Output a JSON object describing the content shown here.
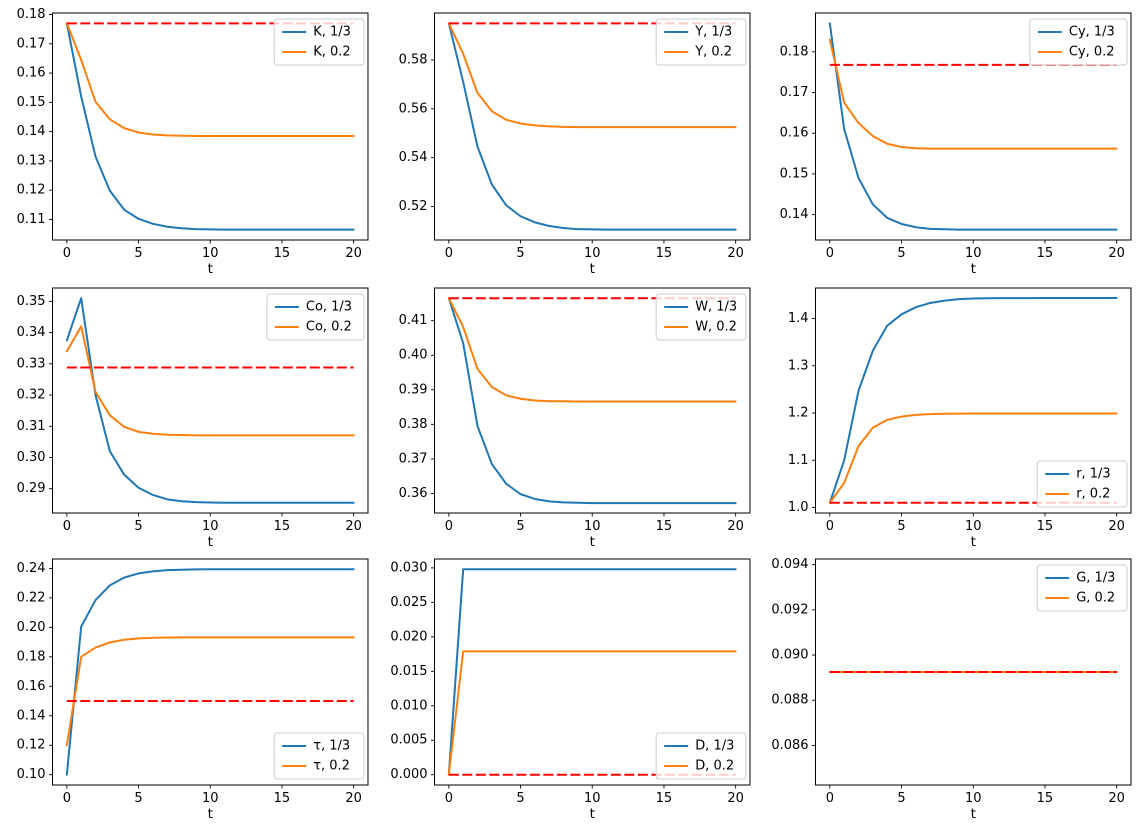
{
  "figure": {
    "background": "#ffffff",
    "xlabel": "t",
    "colors": {
      "blue": "#1f77b4",
      "orange": "#ff7f0e",
      "baseline_red": "#ff0000",
      "legend_border": "#cccccc",
      "spine": "#000000"
    }
  },
  "chart_data": [
    {
      "type": "line",
      "name": "K",
      "xlabel": "t",
      "x": [
        0,
        1,
        2,
        3,
        4,
        5,
        6,
        7,
        8,
        9,
        10,
        11,
        12,
        13,
        14,
        15,
        16,
        17,
        18,
        19,
        20
      ],
      "xlim": [
        -1,
        21
      ],
      "xticks": [
        0,
        5,
        10,
        15,
        20
      ],
      "ylim": [
        0.102975,
        0.180525
      ],
      "yticks": [
        0.11,
        0.12,
        0.13,
        0.14,
        0.15,
        0.16,
        0.17,
        0.18
      ],
      "ytick_decimals": 2,
      "baseline": {
        "value": 0.177,
        "color": "#ff0000",
        "style": "dashed"
      },
      "legend_pos": "top-right",
      "series": [
        {
          "label": "K, 1/3",
          "color": "#1f77b4",
          "values": [
            0.177,
            0.152,
            0.1315,
            0.1198,
            0.1133,
            0.1102,
            0.1085,
            0.1075,
            0.107,
            0.1067,
            0.1066,
            0.1065,
            0.1065,
            0.1065,
            0.1065,
            0.1065,
            0.1065,
            0.1065,
            0.1065,
            0.1065,
            0.1065
          ]
        },
        {
          "label": "K, 0.2",
          "color": "#ff7f0e",
          "values": [
            0.177,
            0.1645,
            0.1502,
            0.1442,
            0.1412,
            0.1397,
            0.139,
            0.1387,
            0.1386,
            0.1385,
            0.1385,
            0.1385,
            0.1385,
            0.1385,
            0.1385,
            0.1385,
            0.1385,
            0.1385,
            0.1385,
            0.1385,
            0.1385
          ]
        }
      ]
    },
    {
      "type": "line",
      "name": "Y",
      "xlabel": "t",
      "x": [
        0,
        1,
        2,
        3,
        4,
        5,
        6,
        7,
        8,
        9,
        10,
        11,
        12,
        13,
        14,
        15,
        16,
        17,
        18,
        19,
        20
      ],
      "xlim": [
        -1,
        21
      ],
      "xticks": [
        0,
        5,
        10,
        15,
        20
      ],
      "ylim": [
        0.506275,
        0.599225
      ],
      "yticks": [
        0.52,
        0.54,
        0.56,
        0.58
      ],
      "ytick_decimals": 2,
      "baseline": {
        "value": 0.595,
        "color": "#ff0000",
        "style": "dashed"
      },
      "legend_pos": "top-right",
      "series": [
        {
          "label": "Y, 1/3",
          "color": "#1f77b4",
          "values": [
            0.595,
            0.571,
            0.5445,
            0.529,
            0.5205,
            0.516,
            0.5135,
            0.512,
            0.5112,
            0.5107,
            0.5106,
            0.5105,
            0.5105,
            0.5105,
            0.5105,
            0.5105,
            0.5105,
            0.5105,
            0.5105,
            0.5105,
            0.5105
          ]
        },
        {
          "label": "Y, 0.2",
          "color": "#ff7f0e",
          "values": [
            0.595,
            0.5825,
            0.5665,
            0.559,
            0.5555,
            0.554,
            0.5532,
            0.5528,
            0.5526,
            0.5525,
            0.5525,
            0.5525,
            0.5525,
            0.5525,
            0.5525,
            0.5525,
            0.5525,
            0.5525,
            0.5525,
            0.5525,
            0.5525
          ]
        }
      ]
    },
    {
      "type": "line",
      "name": "Cy",
      "xlabel": "t",
      "x": [
        0,
        1,
        2,
        3,
        4,
        5,
        6,
        7,
        8,
        9,
        10,
        11,
        12,
        13,
        14,
        15,
        16,
        17,
        18,
        19,
        20
      ],
      "xlim": [
        -1,
        21
      ],
      "xticks": [
        0,
        5,
        10,
        15,
        20
      ],
      "ylim": [
        0.133765,
        0.189535
      ],
      "yticks": [
        0.14,
        0.15,
        0.16,
        0.17,
        0.18
      ],
      "ytick_decimals": 2,
      "baseline": {
        "value": 0.1768,
        "color": "#ff0000",
        "style": "dashed"
      },
      "legend_pos": "top-right",
      "series": [
        {
          "label": "Cy, 1/3",
          "color": "#1f77b4",
          "values": [
            0.187,
            0.161,
            0.149,
            0.1425,
            0.1392,
            0.1377,
            0.1369,
            0.1365,
            0.1364,
            0.1363,
            0.1363,
            0.1363,
            0.1363,
            0.1363,
            0.1363,
            0.1363,
            0.1363,
            0.1363,
            0.1363,
            0.1363,
            0.1363
          ]
        },
        {
          "label": "Cy, 0.2",
          "color": "#ff7f0e",
          "values": [
            0.183,
            0.1675,
            0.1625,
            0.1593,
            0.1574,
            0.1566,
            0.1563,
            0.1562,
            0.1562,
            0.1562,
            0.1562,
            0.1562,
            0.1562,
            0.1562,
            0.1562,
            0.1562,
            0.1562,
            0.1562,
            0.1562,
            0.1562,
            0.1562
          ]
        }
      ]
    },
    {
      "type": "line",
      "name": "Co",
      "xlabel": "t",
      "x": [
        0,
        1,
        2,
        3,
        4,
        5,
        6,
        7,
        8,
        9,
        10,
        11,
        12,
        13,
        14,
        15,
        16,
        17,
        18,
        19,
        20
      ],
      "xlim": [
        -1,
        21
      ],
      "xticks": [
        0,
        5,
        10,
        15,
        20
      ],
      "ylim": [
        0.282225,
        0.354275
      ],
      "yticks": [
        0.29,
        0.3,
        0.31,
        0.32,
        0.33,
        0.34,
        0.35
      ],
      "ytick_decimals": 2,
      "baseline": {
        "value": 0.3288,
        "color": "#ff0000",
        "style": "dashed"
      },
      "legend_pos": "top-right",
      "series": [
        {
          "label": "Co, 1/3",
          "color": "#1f77b4",
          "values": [
            0.3375,
            0.351,
            0.32,
            0.302,
            0.2945,
            0.2903,
            0.288,
            0.2866,
            0.286,
            0.2857,
            0.2856,
            0.2855,
            0.2855,
            0.2855,
            0.2855,
            0.2855,
            0.2855,
            0.2855,
            0.2855,
            0.2855,
            0.2855
          ]
        },
        {
          "label": "Co, 0.2",
          "color": "#ff7f0e",
          "values": [
            0.334,
            0.342,
            0.321,
            0.3135,
            0.3098,
            0.3082,
            0.3076,
            0.3073,
            0.3072,
            0.3071,
            0.3071,
            0.3071,
            0.3071,
            0.3071,
            0.3071,
            0.3071,
            0.3071,
            0.3071,
            0.3071,
            0.3071,
            0.3071
          ]
        }
      ]
    },
    {
      "type": "line",
      "name": "W",
      "xlabel": "t",
      "x": [
        0,
        1,
        2,
        3,
        4,
        5,
        6,
        7,
        8,
        9,
        10,
        11,
        12,
        13,
        14,
        15,
        16,
        17,
        18,
        19,
        20
      ],
      "xlim": [
        -1,
        21
      ],
      "xticks": [
        0,
        5,
        10,
        15,
        20
      ],
      "ylim": [
        0.35434,
        0.41946
      ],
      "yticks": [
        0.36,
        0.37,
        0.38,
        0.39,
        0.4,
        0.41
      ],
      "ytick_decimals": 2,
      "baseline": {
        "value": 0.4165,
        "color": "#ff0000",
        "style": "dashed"
      },
      "legend_pos": "top-right",
      "series": [
        {
          "label": "W, 1/3",
          "color": "#1f77b4",
          "values": [
            0.4165,
            0.4035,
            0.3795,
            0.3685,
            0.3628,
            0.3598,
            0.3584,
            0.3577,
            0.3574,
            0.3573,
            0.3572,
            0.3572,
            0.3572,
            0.3572,
            0.3572,
            0.3572,
            0.3572,
            0.3572,
            0.3572,
            0.3572,
            0.3572
          ]
        },
        {
          "label": "W, 0.2",
          "color": "#ff7f0e",
          "values": [
            0.4165,
            0.4082,
            0.396,
            0.3908,
            0.3884,
            0.3874,
            0.3869,
            0.3867,
            0.3867,
            0.3866,
            0.3866,
            0.3866,
            0.3866,
            0.3866,
            0.3866,
            0.3866,
            0.3866,
            0.3866,
            0.3866,
            0.3866,
            0.3866
          ]
        }
      ]
    },
    {
      "type": "line",
      "name": "r",
      "xlabel": "t",
      "x": [
        0,
        1,
        2,
        3,
        4,
        5,
        6,
        7,
        8,
        9,
        10,
        11,
        12,
        13,
        14,
        15,
        16,
        17,
        18,
        19,
        20
      ],
      "xlim": [
        -1,
        21
      ],
      "xticks": [
        0,
        5,
        10,
        15,
        20
      ],
      "ylim": [
        0.98835,
        1.46465
      ],
      "yticks": [
        1.0,
        1.1,
        1.2,
        1.3,
        1.4
      ],
      "ytick_decimals": 1,
      "baseline": {
        "value": 1.01,
        "color": "#ff0000",
        "style": "dashed"
      },
      "legend_pos": "bottom-right",
      "series": [
        {
          "label": "r, 1/3",
          "color": "#1f77b4",
          "values": [
            1.01,
            1.1,
            1.247,
            1.332,
            1.385,
            1.409,
            1.424,
            1.433,
            1.438,
            1.441,
            1.4425,
            1.443,
            1.4432,
            1.4433,
            1.4433,
            1.4434,
            1.4434,
            1.4434,
            1.4434,
            1.4434,
            1.4434
          ]
        },
        {
          "label": "r, 0.2",
          "color": "#ff7f0e",
          "values": [
            1.01,
            1.052,
            1.13,
            1.169,
            1.1855,
            1.1925,
            1.196,
            1.1977,
            1.1985,
            1.1988,
            1.199,
            1.199,
            1.199,
            1.199,
            1.199,
            1.199,
            1.199,
            1.199,
            1.199,
            1.199,
            1.199
          ]
        }
      ]
    },
    {
      "type": "line",
      "name": "τ",
      "xlabel": "t",
      "x": [
        0,
        1,
        2,
        3,
        4,
        5,
        6,
        7,
        8,
        9,
        10,
        11,
        12,
        13,
        14,
        15,
        16,
        17,
        18,
        19,
        20
      ],
      "xlim": [
        -1,
        21
      ],
      "xticks": [
        0,
        5,
        10,
        15,
        20
      ],
      "ylim": [
        0.09303,
        0.24637
      ],
      "yticks": [
        0.1,
        0.12,
        0.14,
        0.16,
        0.18,
        0.2,
        0.22,
        0.24
      ],
      "ytick_decimals": 2,
      "baseline": {
        "value": 0.15,
        "color": "#ff0000",
        "style": "dashed"
      },
      "legend_pos": "bottom-right",
      "series": [
        {
          "label": "τ, 1/3",
          "color": "#1f77b4",
          "values": [
            0.1,
            0.2005,
            0.2185,
            0.2285,
            0.2338,
            0.2366,
            0.238,
            0.2388,
            0.2391,
            0.2393,
            0.2394,
            0.2394,
            0.2394,
            0.2394,
            0.2394,
            0.2394,
            0.2394,
            0.2394,
            0.2394,
            0.2394,
            0.2394
          ]
        },
        {
          "label": "τ, 0.2",
          "color": "#ff7f0e",
          "values": [
            0.12,
            0.18,
            0.1863,
            0.1898,
            0.1916,
            0.1925,
            0.1929,
            0.1931,
            0.1932,
            0.1932,
            0.1932,
            0.1932,
            0.1932,
            0.1932,
            0.1932,
            0.1932,
            0.1932,
            0.1932,
            0.1932,
            0.1932,
            0.1932
          ]
        }
      ]
    },
    {
      "type": "line",
      "name": "D",
      "xlabel": "t",
      "x": [
        0,
        1,
        2,
        3,
        4,
        5,
        6,
        7,
        8,
        9,
        10,
        11,
        12,
        13,
        14,
        15,
        16,
        17,
        18,
        19,
        20
      ],
      "xlim": [
        -1,
        21
      ],
      "xticks": [
        0,
        5,
        10,
        15,
        20
      ],
      "ylim": [
        -0.00149,
        0.03129
      ],
      "yticks": [
        0.0,
        0.005,
        0.01,
        0.015,
        0.02,
        0.025,
        0.03
      ],
      "ytick_decimals": 3,
      "baseline": {
        "value": 0.0,
        "color": "#ff0000",
        "style": "dashed"
      },
      "legend_pos": "bottom-right",
      "series": [
        {
          "label": "D, 1/3",
          "color": "#1f77b4",
          "values": [
            0,
            0.0298,
            0.0298,
            0.0298,
            0.0298,
            0.0298,
            0.0298,
            0.0298,
            0.0298,
            0.0298,
            0.0298,
            0.0298,
            0.0298,
            0.0298,
            0.0298,
            0.0298,
            0.0298,
            0.0298,
            0.0298,
            0.0298,
            0.0298
          ]
        },
        {
          "label": "D, 0.2",
          "color": "#ff7f0e",
          "values": [
            0,
            0.0179,
            0.0179,
            0.0179,
            0.0179,
            0.0179,
            0.0179,
            0.0179,
            0.0179,
            0.0179,
            0.0179,
            0.0179,
            0.0179,
            0.0179,
            0.0179,
            0.0179,
            0.0179,
            0.0179,
            0.0179,
            0.0179,
            0.0179
          ]
        }
      ]
    },
    {
      "type": "line",
      "name": "G",
      "xlabel": "t",
      "x": [
        0,
        1,
        2,
        3,
        4,
        5,
        6,
        7,
        8,
        9,
        10,
        11,
        12,
        13,
        14,
        15,
        16,
        17,
        18,
        19,
        20
      ],
      "xlim": [
        -1,
        21
      ],
      "xticks": [
        0,
        5,
        10,
        15,
        20
      ],
      "ylim": [
        0.08425,
        0.09425
      ],
      "yticks": [
        0.086,
        0.088,
        0.09,
        0.092,
        0.094
      ],
      "ytick_decimals": 3,
      "baseline": {
        "value": 0.08925,
        "color": "#ff0000",
        "style": "dashed"
      },
      "legend_pos": "top-right",
      "series": [
        {
          "label": "G, 1/3",
          "color": "#1f77b4",
          "values": [
            0.08925,
            0.08925,
            0.08925,
            0.08925,
            0.08925,
            0.08925,
            0.08925,
            0.08925,
            0.08925,
            0.08925,
            0.08925,
            0.08925,
            0.08925,
            0.08925,
            0.08925,
            0.08925,
            0.08925,
            0.08925,
            0.08925,
            0.08925,
            0.08925
          ]
        },
        {
          "label": "G, 0.2",
          "color": "#ff7f0e",
          "values": [
            0.08925,
            0.08925,
            0.08925,
            0.08925,
            0.08925,
            0.08925,
            0.08925,
            0.08925,
            0.08925,
            0.08925,
            0.08925,
            0.08925,
            0.08925,
            0.08925,
            0.08925,
            0.08925,
            0.08925,
            0.08925,
            0.08925,
            0.08925,
            0.08925
          ]
        }
      ]
    }
  ]
}
